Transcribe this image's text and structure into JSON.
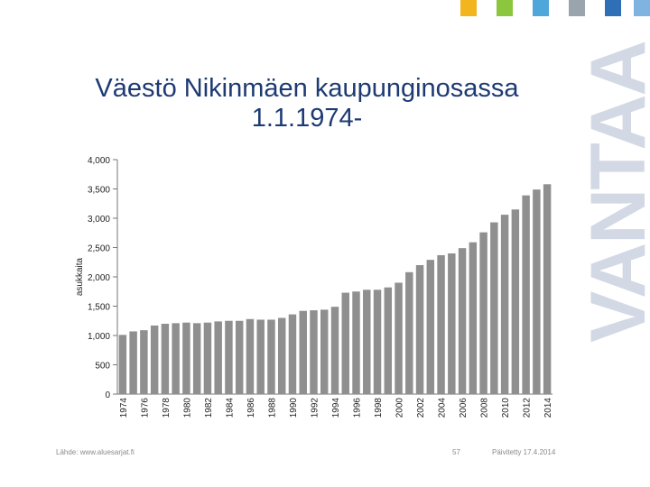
{
  "slide": {
    "title_line1": "Väestö Nikinmäen kaupunginosassa",
    "title_line2": "1.1.1974-",
    "brand": "VANTAA",
    "source": "Lähde: www.aluesarjat.fi",
    "page_number": "57",
    "updated": "Päivitetty 17.4.2014",
    "square_colors": [
      "#f2b51e",
      "#8cc63f",
      "#4fa6d9",
      "#9aa4ad",
      "#2e6fb5",
      "#7fb3e0"
    ]
  },
  "chart_data": {
    "type": "bar",
    "title": "",
    "xlabel": "",
    "ylabel": "asukkaita",
    "ylim": [
      0,
      4000
    ],
    "yticks": [
      0,
      500,
      1000,
      1500,
      2000,
      2500,
      3000,
      3500,
      4000
    ],
    "ytick_labels": [
      "0",
      "500",
      "1,000",
      "1,500",
      "2,000",
      "2,500",
      "3,000",
      "3,500",
      "4,000"
    ],
    "xtick_labels": [
      "1974",
      "1976",
      "1978",
      "1980",
      "1982",
      "1984",
      "1986",
      "1988",
      "1990",
      "1992",
      "1994",
      "1996",
      "1998",
      "2000",
      "2002",
      "2004",
      "2006",
      "2008",
      "2010",
      "2012",
      "2014"
    ],
    "bar_color": "#8f8f8f",
    "categories": [
      "1974",
      "1975",
      "1976",
      "1977",
      "1978",
      "1979",
      "1980",
      "1981",
      "1982",
      "1983",
      "1984",
      "1985",
      "1986",
      "1987",
      "1988",
      "1989",
      "1990",
      "1991",
      "1992",
      "1993",
      "1994",
      "1995",
      "1996",
      "1997",
      "1998",
      "1999",
      "2000",
      "2001",
      "2002",
      "2003",
      "2004",
      "2005",
      "2006",
      "2007",
      "2008",
      "2009",
      "2010",
      "2011",
      "2012",
      "2013",
      "2014"
    ],
    "values": [
      1010,
      1070,
      1090,
      1170,
      1200,
      1210,
      1220,
      1210,
      1220,
      1240,
      1250,
      1250,
      1280,
      1270,
      1270,
      1300,
      1360,
      1420,
      1430,
      1440,
      1490,
      1730,
      1750,
      1780,
      1780,
      1820,
      1900,
      2080,
      2200,
      2290,
      2370,
      2400,
      2490,
      2590,
      2760,
      2930,
      3060,
      3150,
      3390,
      3490,
      3580
    ]
  }
}
